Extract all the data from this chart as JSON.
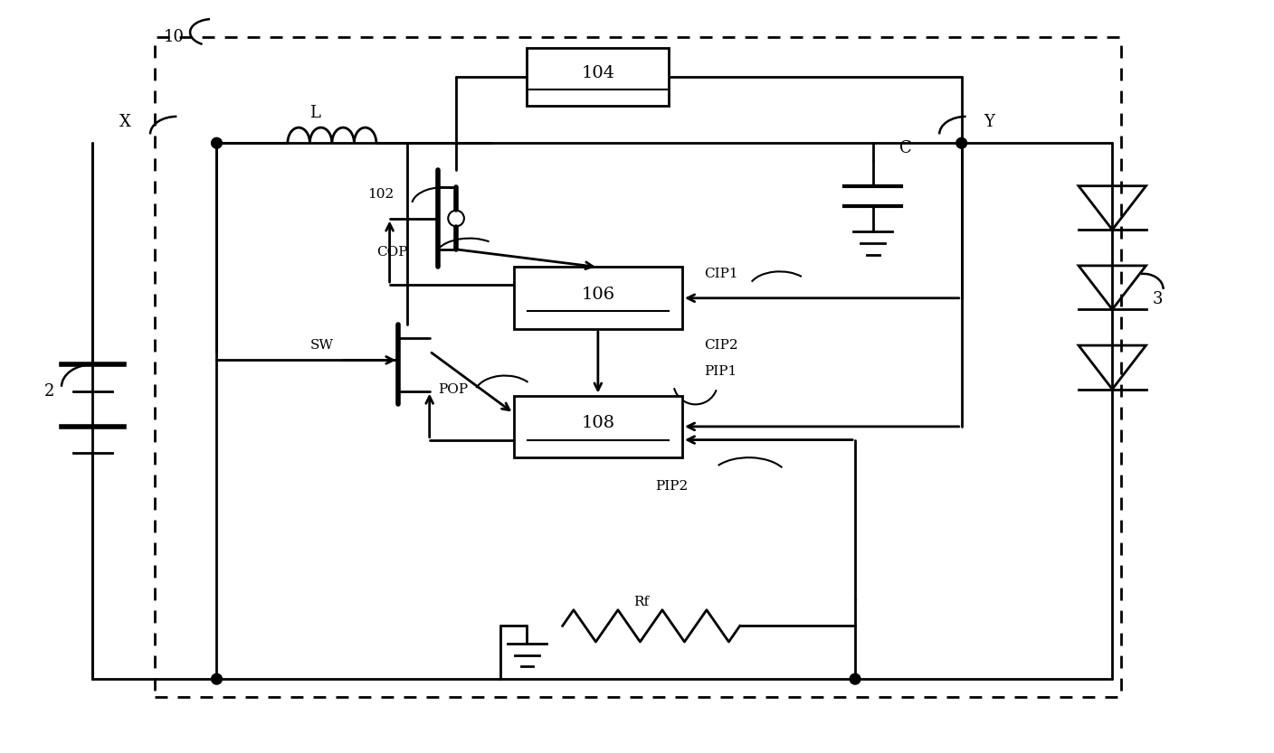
{
  "bg": "#ffffff",
  "lc": "#000000",
  "lw": 2.0,
  "fig_w": 14.08,
  "fig_h": 8.33,
  "dpi": 100,
  "xlim": [
    0,
    140.8
  ],
  "ylim": [
    0,
    83.3
  ]
}
